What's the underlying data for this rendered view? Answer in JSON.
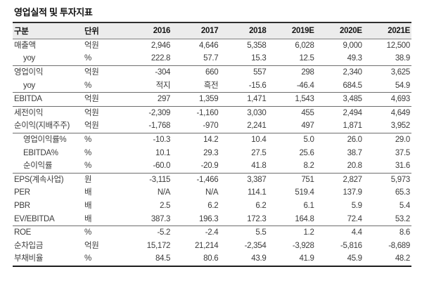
{
  "title": "영업실적 및 투자지표",
  "table": {
    "columns": [
      "구분",
      "단위",
      "2016",
      "2017",
      "2018",
      "2019E",
      "2020E",
      "2021E"
    ],
    "rows": [
      {
        "label": "매출액",
        "indent": false,
        "group_start": false,
        "unit": "억원",
        "values": [
          "2,946",
          "4,646",
          "5,358",
          "6,028",
          "9,000",
          "12,500"
        ]
      },
      {
        "label": "yoy",
        "indent": true,
        "group_start": false,
        "unit": "%",
        "values": [
          "222.8",
          "57.7",
          "15.3",
          "12.5",
          "49.3",
          "38.9"
        ]
      },
      {
        "label": "영업이익",
        "indent": false,
        "group_start": true,
        "unit": "억원",
        "values": [
          "-304",
          "660",
          "557",
          "298",
          "2,340",
          "3,625"
        ]
      },
      {
        "label": "yoy",
        "indent": true,
        "group_start": false,
        "unit": "%",
        "values": [
          "적지",
          "흑전",
          "-15.6",
          "-46.4",
          "684.5",
          "54.9"
        ]
      },
      {
        "label": "EBITDA",
        "indent": false,
        "group_start": true,
        "unit": "억원",
        "values": [
          "297",
          "1,359",
          "1,471",
          "1,543",
          "3,485",
          "4,693"
        ]
      },
      {
        "label": "세전이익",
        "indent": false,
        "group_start": true,
        "unit": "억원",
        "values": [
          "-2,309",
          "-1,160",
          "3,030",
          "455",
          "2,494",
          "4,649"
        ]
      },
      {
        "label": "순이익(지배주주)",
        "indent": false,
        "group_start": false,
        "unit": "억원",
        "values": [
          "-1,768",
          "-970",
          "2,241",
          "497",
          "1,871",
          "3,952"
        ]
      },
      {
        "label": "영업이익률%",
        "indent": true,
        "group_start": true,
        "unit": "%",
        "values": [
          "-10.3",
          "14.2",
          "10.4",
          "5.0",
          "26.0",
          "29.0"
        ]
      },
      {
        "label": "EBITDA%",
        "indent": true,
        "group_start": false,
        "unit": "%",
        "values": [
          "10.1",
          "29.3",
          "27.5",
          "25.6",
          "38.7",
          "37.5"
        ]
      },
      {
        "label": "순이익률",
        "indent": true,
        "group_start": false,
        "unit": "%",
        "values": [
          "-60.0",
          "-20.9",
          "41.8",
          "8.2",
          "20.8",
          "31.6"
        ]
      },
      {
        "label": "EPS(계속사업)",
        "indent": false,
        "group_start": true,
        "unit": "원",
        "values": [
          "-3,115",
          "-1,466",
          "3,387",
          "751",
          "2,827",
          "5,973"
        ]
      },
      {
        "label": "PER",
        "indent": false,
        "group_start": false,
        "unit": "배",
        "values": [
          "N/A",
          "N/A",
          "114.1",
          "519.4",
          "137.9",
          "65.3"
        ]
      },
      {
        "label": "PBR",
        "indent": false,
        "group_start": false,
        "unit": "배",
        "values": [
          "2.5",
          "6.2",
          "6.2",
          "6.1",
          "5.9",
          "5.4"
        ]
      },
      {
        "label": "EV/EBITDA",
        "indent": false,
        "group_start": false,
        "unit": "배",
        "values": [
          "387.3",
          "196.3",
          "172.3",
          "164.8",
          "72.4",
          "53.2"
        ]
      },
      {
        "label": "ROE",
        "indent": false,
        "group_start": true,
        "unit": "%",
        "values": [
          "-5.2",
          "-2.4",
          "5.5",
          "1.2",
          "4.4",
          "8.6"
        ]
      },
      {
        "label": "순차입금",
        "indent": false,
        "group_start": false,
        "unit": "억원",
        "values": [
          "15,172",
          "21,214",
          "-2,354",
          "-3,928",
          "-5,816",
          "-8,689"
        ]
      },
      {
        "label": "부채비율",
        "indent": false,
        "group_start": false,
        "unit": "%",
        "values": [
          "84.5",
          "80.6",
          "43.9",
          "41.9",
          "45.9",
          "48.2"
        ]
      }
    ]
  },
  "colors": {
    "header_bg": "#ececec",
    "body_text": "#3c3c3c",
    "header_text": "#151515",
    "rule_heavy": "#1d1d1d",
    "rule_light": "#6e6e6e"
  }
}
